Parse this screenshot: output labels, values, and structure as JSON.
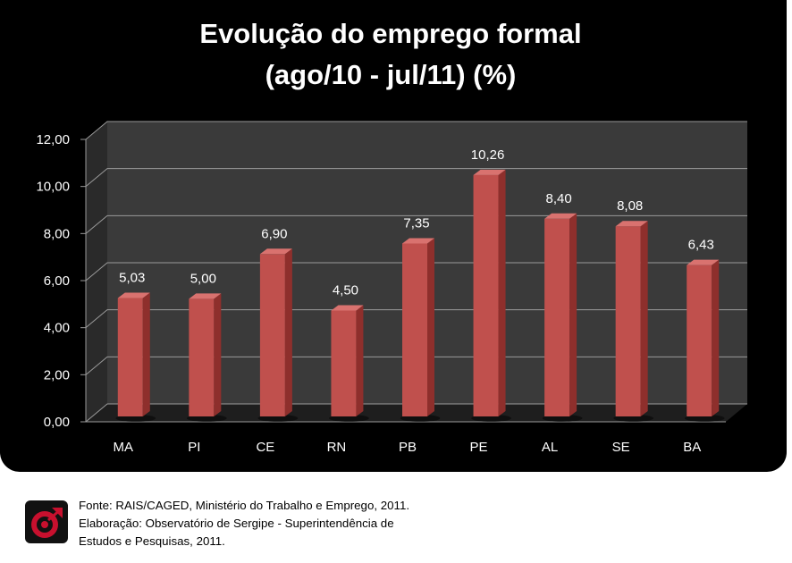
{
  "chart_data": {
    "type": "bar",
    "title": "Evolução do emprego formal",
    "subtitle": "(ago/10 - jul/11) (%)",
    "categories": [
      "MA",
      "PI",
      "CE",
      "RN",
      "PB",
      "PE",
      "AL",
      "SE",
      "BA"
    ],
    "values": [
      5.03,
      5.0,
      6.9,
      4.5,
      7.35,
      10.26,
      8.4,
      8.08,
      6.43
    ],
    "data_labels": [
      "5,03",
      "5,00",
      "6,90",
      "4,50",
      "7,35",
      "10,26",
      "8,40",
      "8,08",
      "6,43"
    ],
    "y_ticks": [
      "0,00",
      "2,00",
      "4,00",
      "6,00",
      "8,00",
      "10,00",
      "12,00"
    ],
    "ylim": [
      0,
      12
    ],
    "grid": true,
    "legend": "none",
    "colors": {
      "background": "#000000",
      "bar": "#c0504d",
      "bar_side": "#8e2f2c",
      "bar_top": "#d9726f",
      "wall": "#3a3a3a",
      "grid": "#9a9a9a",
      "text": "#ffffff"
    }
  },
  "footer": {
    "line1": "Fonte: RAIS/CAGED, Ministério do Trabalho e Emprego, 2011.",
    "line2": "Elaboração: Observatório de Sergipe  - Superintendência de",
    "line3": "Estudos e Pesquisas, 2011.",
    "logo_icon": "observatorio-logo-icon"
  }
}
